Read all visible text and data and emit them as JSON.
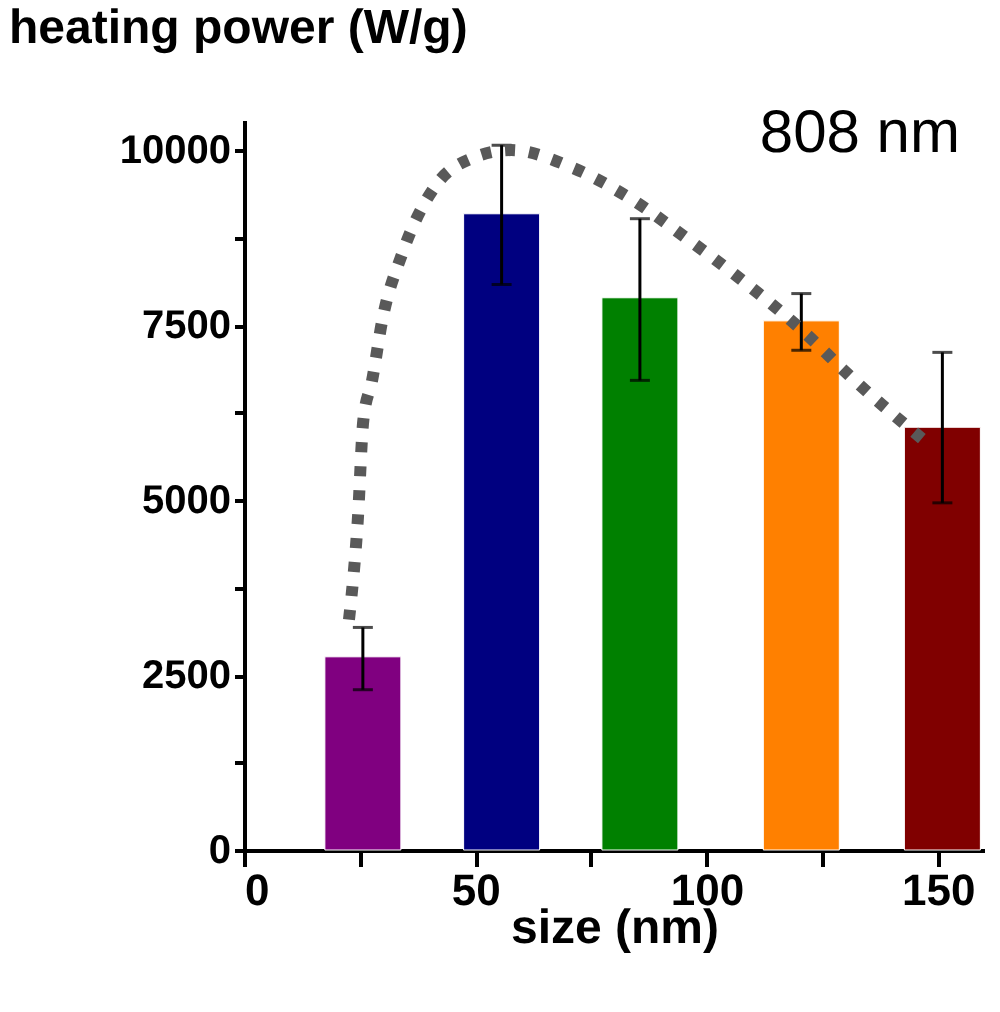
{
  "chart_data": {
    "type": "bar",
    "ylabel": "heating power (W/g)",
    "xlabel": "size (nm)",
    "annotations": [
      "808 nm"
    ],
    "x": [
      25.7,
      55.7,
      85.6,
      120.5,
      151
    ],
    "values": [
      2760,
      9090,
      7890,
      7560,
      6040
    ],
    "colors": [
      "#800080",
      "#000080",
      "#008000",
      "#ff8000",
      "#800000"
    ],
    "errors": [
      [
        2290,
        3180
      ],
      [
        8080,
        10070
      ],
      [
        6710,
        9020
      ],
      [
        7140,
        7950
      ],
      [
        4960,
        7110
      ]
    ],
    "series": [
      {
        "type": "line",
        "color": "#595959",
        "line_style": "dotted",
        "marker": "none",
        "x": [
          22.7,
          24.6,
          25.8,
          27.7,
          29.9,
          34.2,
          41.3,
          49.2,
          57.8,
          70.6,
          83.5,
          96.3,
          107.7,
          120.6,
          132,
          147.8
        ],
        "values": [
          3290,
          4710,
          6140,
          6710,
          7570,
          8520,
          9480,
          9880,
          10000,
          9760,
          9310,
          8710,
          8140,
          7430,
          6710,
          5810
        ]
      }
    ],
    "xlim": [
      0,
      160
    ],
    "ylim": [
      0,
      10430
    ],
    "xticks": [
      0,
      {
        "value": 25,
        "label": null
      },
      50,
      {
        "value": 75,
        "label": null
      },
      100,
      {
        "value": 125,
        "label": null
      },
      150
    ],
    "yticks": [
      0,
      {
        "value": 1250,
        "label": null
      },
      2500,
      {
        "value": 3750,
        "label": null
      },
      5000,
      {
        "value": 6250,
        "label": null
      },
      7500,
      {
        "value": 8750,
        "label": null
      },
      10000
    ],
    "grid": false
  }
}
